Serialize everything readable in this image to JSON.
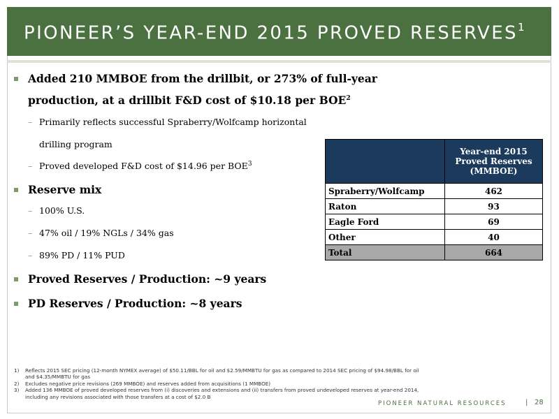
{
  "title": {
    "text": "PIONEER’S YEAR-END 2015 PROVED RESERVES",
    "sup": "1"
  },
  "bullets": {
    "b1_line1": "Added 210 MMBOE from the drillbit, or 273% of full-year",
    "b1_line2": "production, at a drillbit F&D cost of $10.18 per BOE",
    "b1_sup": "2",
    "b1_sub1_line1": "Primarily reflects successful Spraberry/Wolfcamp horizontal",
    "b1_sub1_line2": "drilling program",
    "b1_sub2": "Proved developed F&D cost of $14.96 per BOE",
    "b1_sub2_sup": "3",
    "b2": "Reserve mix",
    "b2_sub1": "100% U.S.",
    "b2_sub2": "47% oil / 19% NGLs / 34% gas",
    "b2_sub3": "89% PD / 11% PUD",
    "b3": "Proved Reserves / Production: ~9 years",
    "b4": "PD Reserves / Production: ~8 years",
    "dash": "–"
  },
  "table": {
    "header": "Year-end 2015 Proved Reserves (MMBOE)",
    "rows": [
      {
        "label": "Spraberry/Wolfcamp",
        "value": "462"
      },
      {
        "label": "Raton",
        "value": "93"
      },
      {
        "label": "Eagle Ford",
        "value": "69"
      },
      {
        "label": "Other",
        "value": "40"
      }
    ],
    "total": {
      "label": "Total",
      "value": "664"
    }
  },
  "footnotes": [
    {
      "n": "1)",
      "line1": "Reflects 2015 SEC pricing (12-month NYMEX average) of $50.11/BBL for oil and $2.59/MMBTU for gas as compared to 2014 SEC pricing of $94.98/BBL for oil",
      "line2": "and $4.35/MMBTU for gas"
    },
    {
      "n": "2)",
      "line1": "Excludes negative price revisions (269 MMBOE) and reserves added from acquisitions (1 MMBOE)",
      "line2": ""
    },
    {
      "n": "3)",
      "line1": "Added 136 MMBOE of proved developed reserves from (i) discoveries and extensions and (ii) transfers from proved undeveloped reserves at year-end 2014,",
      "line2": "including any revisions associated with those transfers at a cost of $2.0 B"
    }
  ],
  "footer": {
    "brand": "PIONEER NATURAL RESOURCES",
    "separator": "|",
    "page": "28"
  },
  "colors": {
    "title_bar": "#4b7141",
    "table_header": "#1b3a5c",
    "total_row": "#a8a8a8",
    "bullet_accent": "#7d9b6f"
  }
}
